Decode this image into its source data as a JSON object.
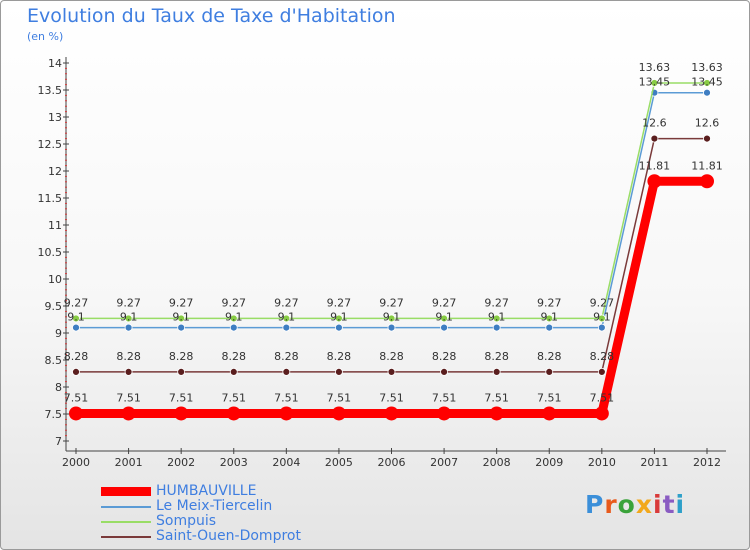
{
  "chart_data": {
    "type": "line",
    "title": "Evolution du Taux de Taxe d'Habitation",
    "subtitle": "(en %)",
    "xlabel": "",
    "ylabel": "(en %)",
    "ylim": [
      7,
      14
    ],
    "yticks": [
      7,
      7.5,
      8,
      8.5,
      9,
      9.5,
      10,
      10.5,
      11,
      11.5,
      12,
      12.5,
      13,
      13.5,
      14
    ],
    "grid": false,
    "legend_position": "bottom-left",
    "categories": [
      "2000",
      "2001",
      "2002",
      "2003",
      "2004",
      "2005",
      "2006",
      "2007",
      "2008",
      "2009",
      "2010",
      "2011",
      "2012"
    ],
    "series": [
      {
        "name": "HUMBAUVILLE",
        "color": "#ff0000",
        "values": [
          7.51,
          7.51,
          7.51,
          7.51,
          7.51,
          7.51,
          7.51,
          7.51,
          7.51,
          7.51,
          7.51,
          11.81,
          11.81
        ],
        "labels": [
          "7.51",
          "7.51",
          "7.51",
          "7.51",
          "7.51",
          "7.51",
          "7.51",
          "7.51",
          "7.51",
          "7.51",
          "7.51",
          "11.81",
          "11.81"
        ]
      },
      {
        "name": "Le Meix-Tiercelin",
        "color": "#5b9bd5",
        "values": [
          9.1,
          9.1,
          9.1,
          9.1,
          9.1,
          9.1,
          9.1,
          9.1,
          9.1,
          9.1,
          9.1,
          13.45,
          13.45
        ],
        "labels": [
          "9.1",
          "9.1",
          "9.1",
          "9.1",
          "9.1",
          "9.1",
          "9.1",
          "9.1",
          "9.1",
          "9.1",
          "9.1",
          "13.45",
          "13.45"
        ]
      },
      {
        "name": "Sompuis",
        "color": "#99dd66",
        "values": [
          9.27,
          9.27,
          9.27,
          9.27,
          9.27,
          9.27,
          9.27,
          9.27,
          9.27,
          9.27,
          9.27,
          13.63,
          13.63
        ],
        "labels": [
          "9.27",
          "9.27",
          "9.27",
          "9.27",
          "9.27",
          "9.27",
          "9.27",
          "9.27",
          "9.27",
          "9.27",
          "9.27",
          "13.63",
          "13.63"
        ]
      },
      {
        "name": "Saint-Ouen-Domprot",
        "color": "#7a3a3a",
        "values": [
          8.28,
          8.28,
          8.28,
          8.28,
          8.28,
          8.28,
          8.28,
          8.28,
          8.28,
          8.28,
          8.28,
          12.6,
          12.6
        ],
        "labels": [
          "8.28",
          "8.28",
          "8.28",
          "8.28",
          "8.28",
          "8.28",
          "8.28",
          "8.28",
          "8.28",
          "8.28",
          "8.28",
          "12.6",
          "12.6"
        ]
      }
    ]
  },
  "brand": {
    "text": "Proxiti",
    "colors": [
      "#3b8fd9",
      "#e85a1c",
      "#3aa33a",
      "#f2a81c",
      "#d93b3b",
      "#8a5cc2",
      "#2ea0c9"
    ]
  }
}
